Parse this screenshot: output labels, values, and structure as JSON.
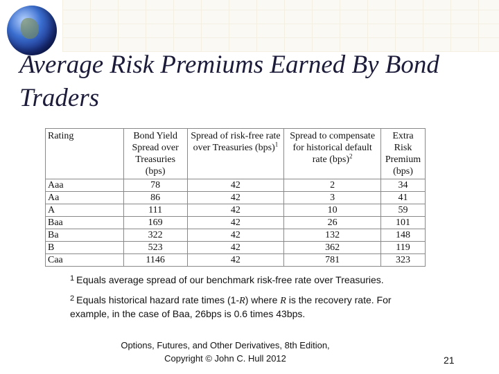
{
  "header": {
    "title": "Average Risk Premiums Earned By Bond Traders"
  },
  "table": {
    "columns": [
      {
        "text": "Rating",
        "sup": null
      },
      {
        "text": "Bond Yield Spread over Treasuries (bps)",
        "sup": null
      },
      {
        "text": "Spread of risk-free rate over Treasuries (bps)",
        "sup": "1"
      },
      {
        "text": "Spread to compensate for historical default rate (bps)",
        "sup": "2"
      },
      {
        "text": "Extra Risk Premium (bps)",
        "sup": null
      }
    ],
    "rows": [
      [
        "Aaa",
        78,
        42,
        2,
        34
      ],
      [
        "Aa",
        86,
        42,
        3,
        41
      ],
      [
        "A",
        111,
        42,
        10,
        59
      ],
      [
        "Baa",
        169,
        42,
        26,
        101
      ],
      [
        "Ba",
        322,
        42,
        132,
        148
      ],
      [
        "B",
        523,
        42,
        362,
        119
      ],
      [
        "Caa",
        1146,
        42,
        781,
        323
      ]
    ]
  },
  "footnotes": [
    {
      "marker": "1",
      "parts": [
        "Equals average spread of our benchmark risk-free rate over Treasuries."
      ]
    },
    {
      "marker": "2",
      "parts": [
        "Equals historical hazard rate times (1-",
        "R",
        ") where ",
        "R",
        " is the recovery rate. For example, in the case of Baa, 26bps is 0.6 times 43bps."
      ]
    }
  ],
  "footer": {
    "line1": "Options, Futures, and Other Derivatives, 8th Edition,",
    "line2": "Copyright © John C. Hull 2012"
  },
  "page_number": "21"
}
